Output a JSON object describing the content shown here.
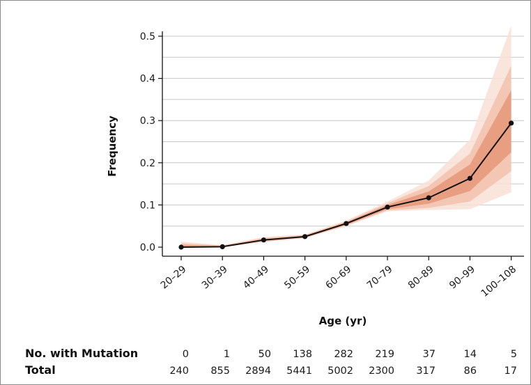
{
  "chart_data": {
    "type": "line",
    "title": "",
    "xlabel": "Age (yr)",
    "ylabel": "Frequency",
    "ylim": [
      0.0,
      0.5
    ],
    "y_ticks": [
      "0.0",
      "0.1",
      "0.2",
      "0.3",
      "0.4",
      "0.5"
    ],
    "grid": "horizontal",
    "categories": [
      "20–29",
      "30–39",
      "40–49",
      "50–59",
      "60–69",
      "70–79",
      "80–89",
      "90–99",
      "100–108"
    ],
    "series": [
      {
        "values": [
          0.0,
          0.001,
          0.017,
          0.025,
          0.056,
          0.095,
          0.117,
          0.163,
          0.294
        ]
      }
    ],
    "bands": [
      {
        "lower": [
          0.0,
          0.0,
          0.012,
          0.021,
          0.05,
          0.085,
          0.088,
          0.09,
          0.13
        ],
        "upper": [
          0.013,
          0.005,
          0.024,
          0.03,
          0.063,
          0.108,
          0.158,
          0.255,
          0.525
        ]
      },
      {
        "lower": [
          0.0,
          0.0,
          0.013,
          0.022,
          0.051,
          0.087,
          0.093,
          0.108,
          0.18
        ],
        "upper": [
          0.009,
          0.004,
          0.022,
          0.029,
          0.061,
          0.104,
          0.145,
          0.222,
          0.43
        ]
      },
      {
        "lower": [
          0.0,
          0.0,
          0.015,
          0.023,
          0.053,
          0.09,
          0.103,
          0.133,
          0.225
        ],
        "upper": [
          0.005,
          0.003,
          0.019,
          0.027,
          0.059,
          0.1,
          0.132,
          0.196,
          0.372
        ]
      }
    ],
    "band_colors": [
      "#f9e1d6",
      "#f2c2ad",
      "#e59777"
    ],
    "line_color": "#111111",
    "table": {
      "rows": [
        {
          "label": "No. with Mutation",
          "values": [
            "0",
            "1",
            "50",
            "138",
            "282",
            "219",
            "37",
            "14",
            "5"
          ]
        },
        {
          "label": "Total",
          "values": [
            "240",
            "855",
            "2894",
            "5441",
            "5002",
            "2300",
            "317",
            "86",
            "17"
          ]
        }
      ]
    }
  }
}
